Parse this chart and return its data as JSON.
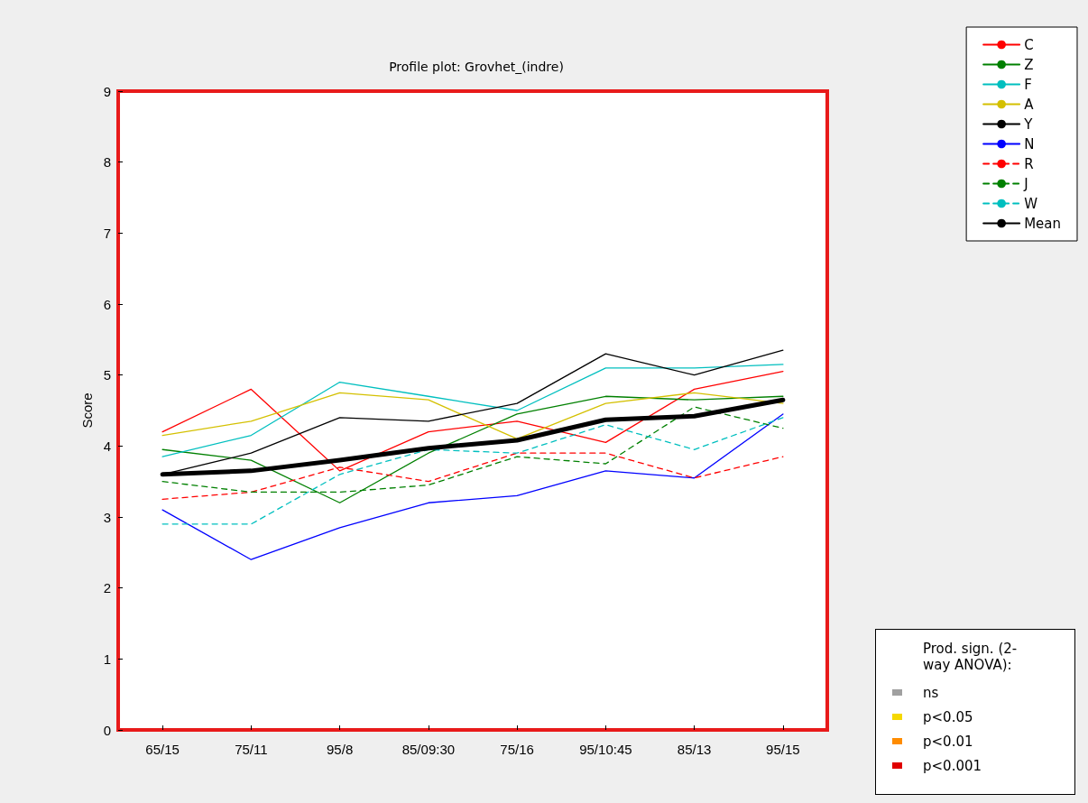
{
  "chart_data": {
    "type": "line",
    "title": "Profile plot: Grovhet_(indre)",
    "ylabel": "Score",
    "categories": [
      "65/15",
      "75/11",
      "95/8",
      "85/09:30",
      "75/16",
      "95/10:45",
      "85/13",
      "95/15"
    ],
    "ylim": [
      0,
      9
    ],
    "yticks": [
      0,
      1,
      2,
      3,
      4,
      5,
      6,
      7,
      8,
      9
    ],
    "grid": false,
    "legend": "top right",
    "marker": "none",
    "series": [
      {
        "name": "C",
        "color": "#ff0000",
        "line_style": "solid",
        "values": [
          4.2,
          4.8,
          3.65,
          4.2,
          4.35,
          4.05,
          4.8,
          5.05
        ]
      },
      {
        "name": "Z",
        "color": "#008000",
        "line_style": "solid",
        "values": [
          3.95,
          3.8,
          3.2,
          3.9,
          4.45,
          4.7,
          4.65,
          4.7
        ]
      },
      {
        "name": "F",
        "color": "#00bfbf",
        "line_style": "solid",
        "values": [
          3.85,
          4.15,
          4.9,
          4.7,
          4.5,
          5.1,
          5.1,
          5.15
        ]
      },
      {
        "name": "A",
        "color": "#d4c000",
        "line_style": "solid",
        "values": [
          4.15,
          4.35,
          4.75,
          4.65,
          4.1,
          4.6,
          4.75,
          4.6
        ]
      },
      {
        "name": "Y",
        "color": "#000000",
        "line_style": "solid",
        "values": [
          3.6,
          3.9,
          4.4,
          4.35,
          4.6,
          5.3,
          5.0,
          5.35
        ]
      },
      {
        "name": "N",
        "color": "#0000ff",
        "line_style": "solid",
        "values": [
          3.1,
          2.4,
          2.85,
          3.2,
          3.3,
          3.65,
          3.55,
          4.45
        ]
      },
      {
        "name": "R",
        "color": "#ff0000",
        "line_style": "dashed",
        "values": [
          3.25,
          3.35,
          3.7,
          3.5,
          3.9,
          3.9,
          3.55,
          3.85
        ]
      },
      {
        "name": "J",
        "color": "#008000",
        "line_style": "dashed",
        "values": [
          3.5,
          3.35,
          3.35,
          3.45,
          3.85,
          3.75,
          4.55,
          4.25
        ]
      },
      {
        "name": "W",
        "color": "#00bfbf",
        "line_style": "dashed",
        "values": [
          2.9,
          2.9,
          3.6,
          3.95,
          3.9,
          4.3,
          3.95,
          4.4
        ]
      },
      {
        "name": "Mean",
        "color": "#000000",
        "line_style": "solid",
        "values": [
          3.6,
          3.65,
          3.8,
          3.97,
          4.08,
          4.37,
          4.42,
          4.65
        ]
      }
    ],
    "annotations": [
      "Prod. sign. (2-way ANOVA):",
      "ns",
      "p<0.05",
      "p<0.01",
      "p<0.001"
    ]
  }
}
